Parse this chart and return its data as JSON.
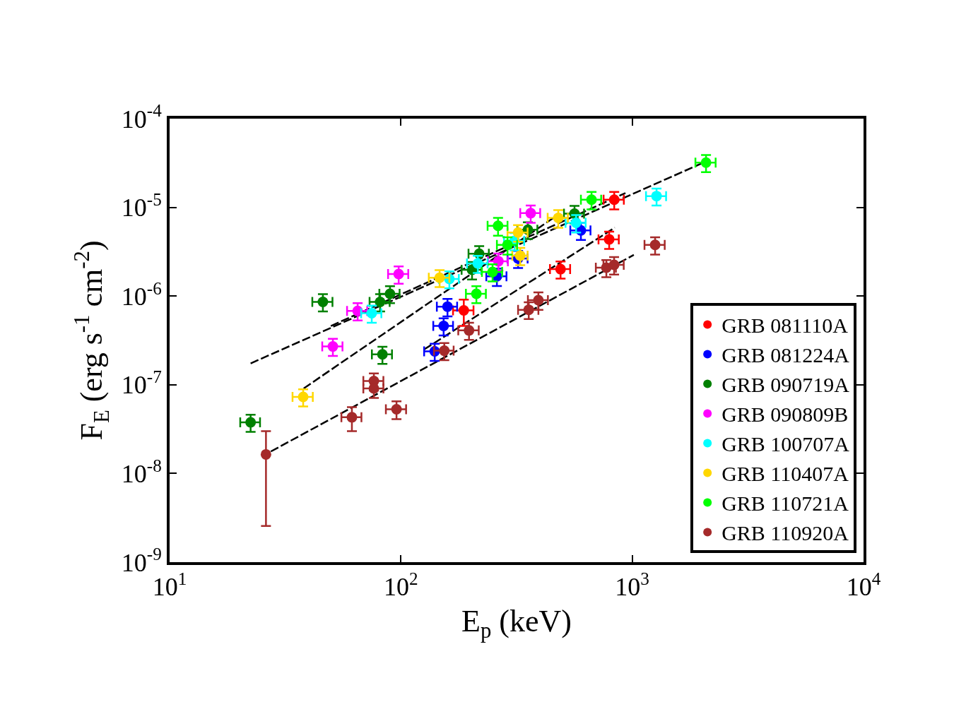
{
  "chart_data": {
    "type": "scatter",
    "xlabel": "E$_{p}$ (keV)",
    "ylabel": "F$_{E}$ (erg s$^{-1}$ cm$^{-2}$)",
    "log": "xy",
    "grid": false,
    "legend": "bottom right",
    "marker": "circle",
    "xlim": [
      10,
      10000
    ],
    "xticks": [
      {
        "value": 10,
        "label": "10$^{1}$"
      },
      {
        "value": 100,
        "label": "10$^{2}$"
      },
      {
        "value": 1000,
        "label": "10$^{3}$"
      },
      {
        "value": 10000,
        "label": "10$^{4}$"
      }
    ],
    "ylim": [
      1e-09,
      0.0001
    ],
    "yticks": [
      {
        "value": 1e-09,
        "label": "10$^{-9}$"
      },
      {
        "value": 1e-08,
        "label": "10$^{-8}$"
      },
      {
        "value": 1e-07,
        "label": "10$^{-7}$"
      },
      {
        "value": 1e-06,
        "label": "10$^{-6}$"
      },
      {
        "value": 1e-05,
        "label": "10$^{-5}$"
      },
      {
        "value": 0.0001,
        "label": "10$^{-4}$"
      }
    ],
    "series": [
      {
        "type": "line",
        "color": "#000000",
        "line_style": "dashed",
        "marker": "none",
        "x": [
          22.4,
          2028
        ],
        "values": [
          1.74e-07,
          3.19e-05
        ]
      },
      {
        "type": "line",
        "color": "#000000",
        "line_style": "dashed",
        "marker": "none",
        "x": [
          49.8,
          935
        ],
        "values": [
          4.6e-07,
          1.45e-05
        ]
      },
      {
        "type": "line",
        "color": "#000000",
        "line_style": "dashed",
        "marker": "none",
        "x": [
          38,
          479
        ],
        "values": [
          9.1e-08,
          8.3e-06
        ]
      },
      {
        "type": "line",
        "color": "#000000",
        "line_style": "dashed",
        "marker": "none",
        "x": [
          126,
          841
        ],
        "values": [
          2.5e-07,
          5.9e-06
        ]
      },
      {
        "type": "line",
        "color": "#000000",
        "line_style": "dashed",
        "marker": "none",
        "x": [
          27.4,
          1016
        ],
        "values": [
          1.77e-08,
          2.91e-06
        ]
      },
      {
        "name": "GRB 081110A",
        "color": "#ff0000",
        "x": [
          836,
          795,
          490,
          187
        ],
        "values": [
          1.22e-05,
          4.36e-06,
          2.01e-06,
          6.9e-07
        ],
        "errors": [
          2.7e-06,
          9.6e-07,
          4.4e-07,
          [
            4.6e-07,
            9.1e-07
          ]
        ],
        "xerrors": [
          84,
          80,
          49,
          19
        ]
      },
      {
        "name": "GRB 081224A",
        "color": "#0000ff",
        "x": [
          140,
          153,
          159,
          260,
          321,
          600
        ],
        "values": [
          2.38e-07,
          4.6e-07,
          7.6e-07,
          1.67e-06,
          2.65e-06,
          5.5e-06
        ],
        "errors": [
          5.2e-08,
          1e-07,
          1.7e-07,
          3.7e-07,
          5.8e-07,
          1.2e-06
        ],
        "xerrors": [
          14,
          15,
          16,
          26,
          32,
          60
        ]
      },
      {
        "name": "GRB 090719A",
        "color": "#008000",
        "x": [
          22.4,
          46,
          81.3,
          89.7,
          83.2,
          203,
          218,
          354,
          563
        ],
        "values": [
          3.77e-08,
          8.6e-07,
          8.6e-07,
          1.06e-06,
          2.2e-07,
          1.98e-06,
          3e-06,
          5.6e-06,
          8.5e-06
        ],
        "errors": [
          8.3e-09,
          1.9e-07,
          1.9e-07,
          2.3e-07,
          4.8e-08,
          4.4e-07,
          6.6e-07,
          1.2e-06,
          1.9e-06
        ],
        "xerrors": [
          2.2,
          4.6,
          8.1,
          9,
          8.3,
          20,
          22,
          35,
          56
        ]
      },
      {
        "name": "GRB 090809B",
        "color": "#ff00ff",
        "x": [
          97.8,
          65,
          50.8,
          364,
          264
        ],
        "values": [
          1.77e-06,
          6.8e-07,
          2.7e-07,
          8.6e-06,
          2.47e-06
        ],
        "errors": [
          3.9e-07,
          1.5e-07,
          5.9e-08,
          1.9e-06,
          5.4e-07
        ],
        "xerrors": [
          9.8,
          6.5,
          5.1,
          36,
          26
        ]
      },
      {
        "name": "GRB 100707A",
        "color": "#00ffff",
        "x": [
          74.8,
          162,
          215,
          310,
          572,
          1274
        ],
        "values": [
          6.4e-07,
          1.56e-06,
          2.33e-06,
          4.2e-06,
          6.7e-06,
          1.34e-05
        ],
        "errors": [
          1.4e-07,
          3.4e-07,
          5.1e-07,
          9.2e-07,
          1.5e-06,
          2.9e-06
        ],
        "xerrors": [
          7.5,
          16,
          22,
          31,
          57,
          127
        ]
      },
      {
        "name": "GRB 110407A",
        "color": "#ffd700",
        "x": [
          37.8,
          147,
          321,
          328,
          479
        ],
        "values": [
          7.3e-08,
          1.61e-06,
          5.2e-06,
          2.86e-06,
          7.6e-06
        ],
        "errors": [
          1.6e-08,
          3.5e-07,
          1.1e-06,
          6.3e-07,
          1.7e-06
        ],
        "xerrors": [
          3.8,
          15,
          32,
          25,
          48
        ]
      },
      {
        "name": "GRB 110721A",
        "color": "#00ff00",
        "x": [
          212,
          249,
          289,
          263,
          667,
          2085
        ],
        "values": [
          1.06e-06,
          1.87e-06,
          3.77e-06,
          6.2e-06,
          1.22e-05,
          3.19e-05
        ],
        "errors": [
          2.3e-07,
          4.1e-07,
          8.3e-07,
          1.4e-06,
          2.7e-06,
          7e-06
        ],
        "xerrors": [
          21,
          25,
          29,
          26,
          67,
          209
        ]
      },
      {
        "name": "GRB 110920A",
        "color": "#a52a2a",
        "x": [
          26.1,
          76.4,
          76.4,
          61.4,
          95.7,
          154,
          197,
          357,
          393,
          773,
          835,
          1256
        ],
        "values": [
          1.64e-08,
          1.1e-07,
          9.1e-08,
          4.3e-08,
          5.3e-08,
          2.42e-07,
          4.1e-07,
          7e-07,
          9e-07,
          2.09e-06,
          2.25e-06,
          3.77e-06
        ],
        "errors": [
          [
            2.56e-09,
            3e-08
          ],
          2.4e-08,
          2e-08,
          [
            3e-08,
            5.6e-08
          ],
          1.2e-08,
          5.3e-08,
          9e-08,
          1.5e-07,
          2e-07,
          4.6e-07,
          5e-07,
          8.3e-07
        ],
        "xerrors": [
          null,
          7.6,
          7.6,
          6.1,
          9.6,
          15,
          20,
          36,
          39,
          77,
          84,
          126
        ]
      }
    ]
  }
}
